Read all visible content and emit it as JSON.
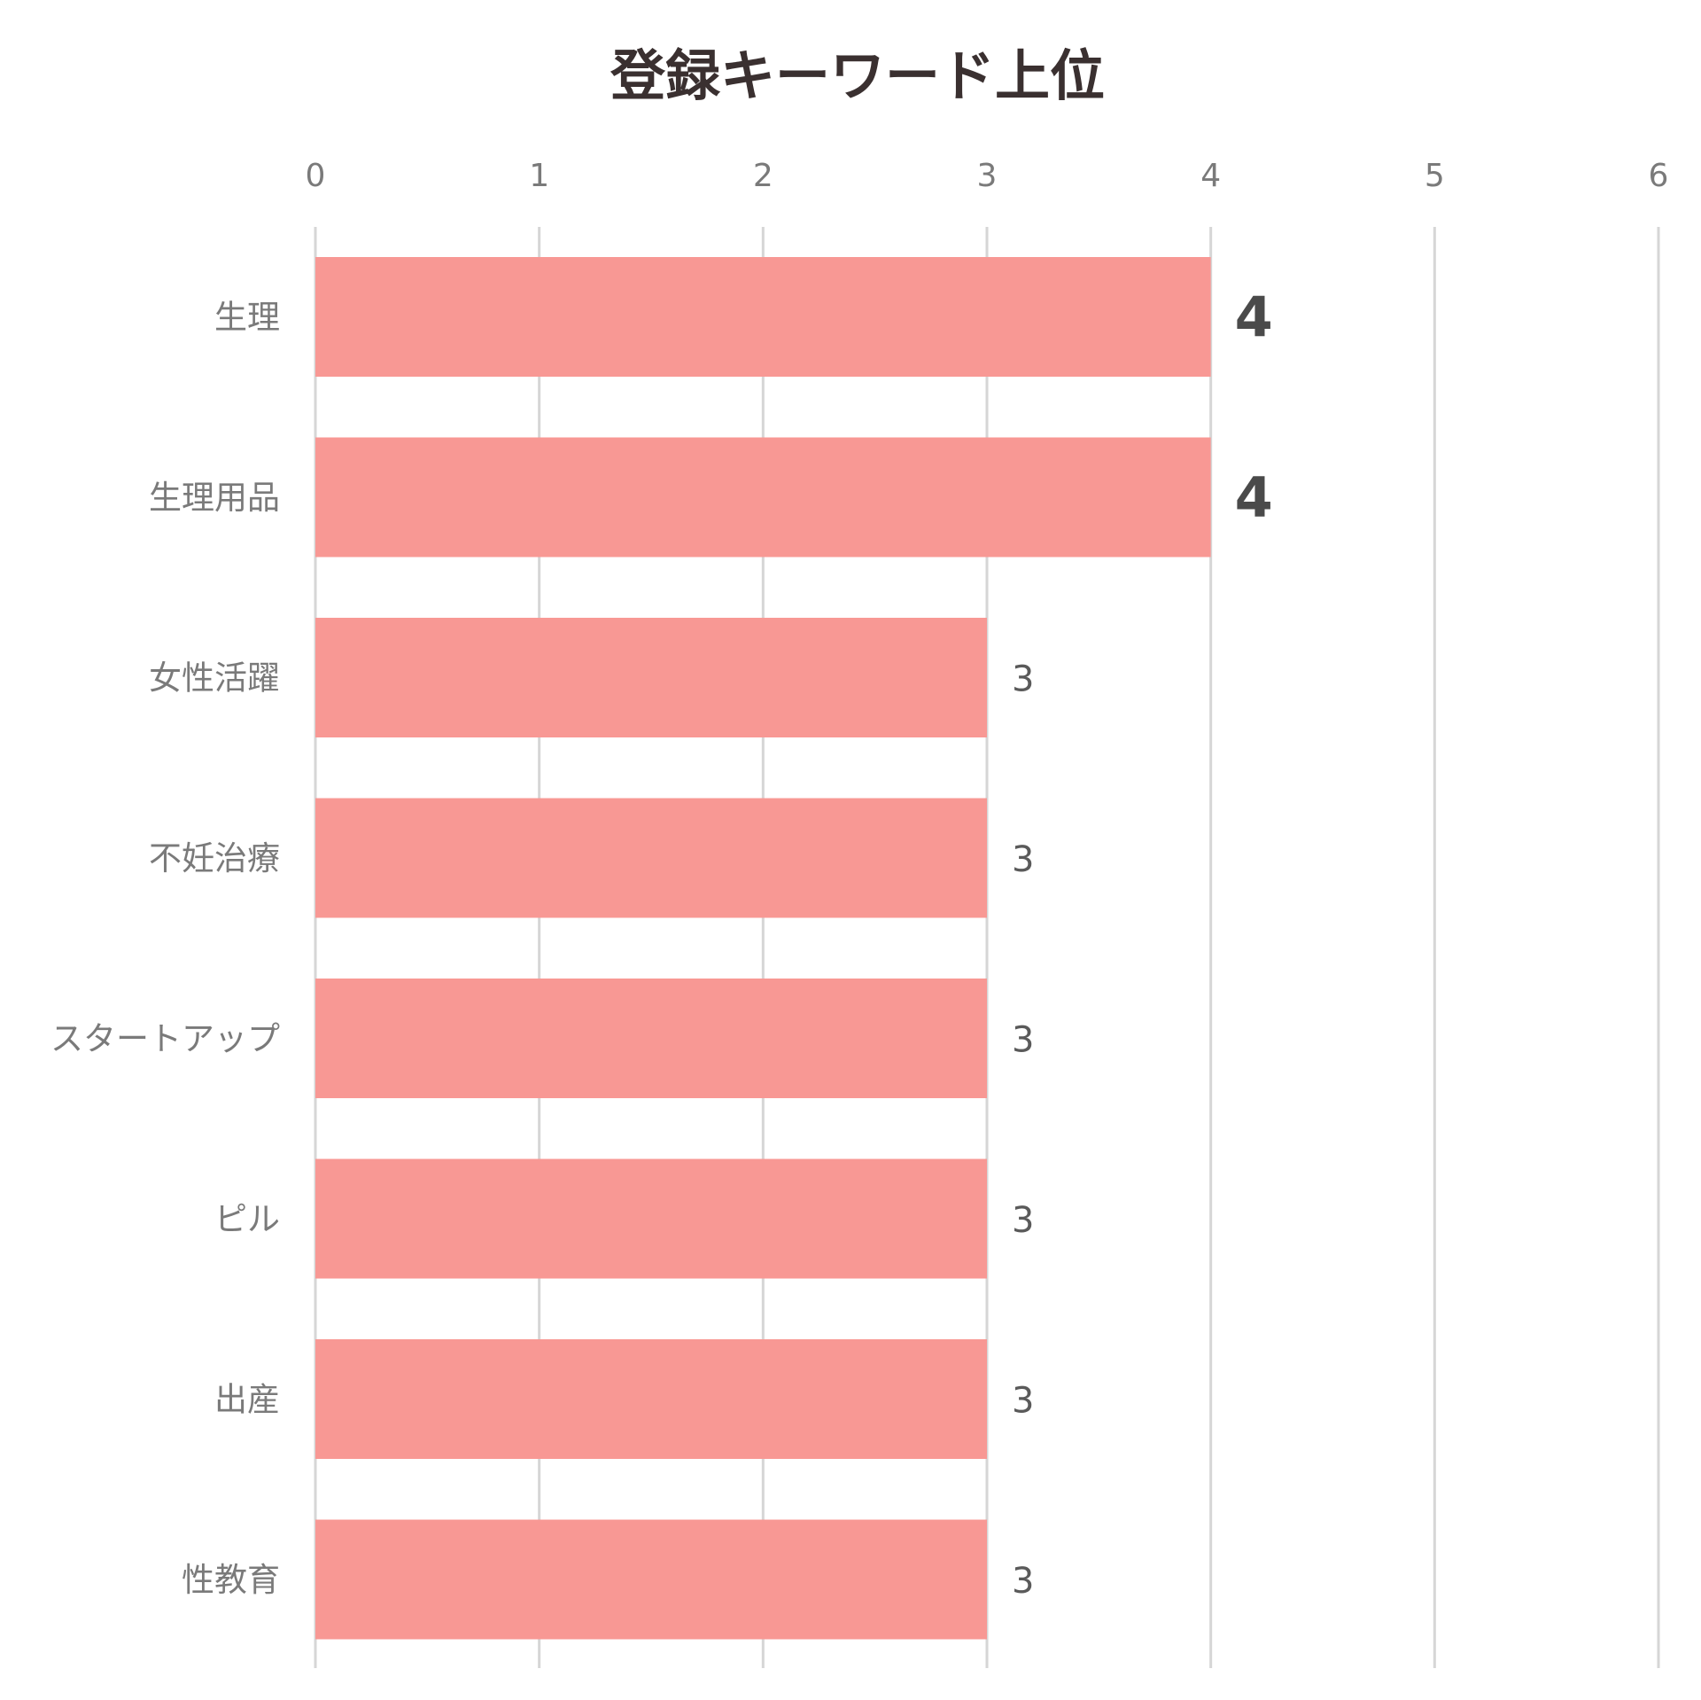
{
  "chart_data": {
    "type": "bar",
    "orientation": "horizontal",
    "title": "登録キーワード上位",
    "categories": [
      "生理",
      "生理用品",
      "女性活躍",
      "不妊治療",
      "スタートアップ",
      "ピル",
      "出産",
      "性教育"
    ],
    "values": [
      4,
      4,
      3,
      3,
      3,
      3,
      3,
      3
    ],
    "value_labels": [
      "4",
      "4",
      "3",
      "3",
      "3",
      "3",
      "3",
      "3"
    ],
    "emphasized_labels": [
      true,
      true,
      false,
      false,
      false,
      false,
      false,
      false
    ],
    "xlim": [
      0,
      6
    ],
    "x_ticks": [
      0,
      1,
      2,
      3,
      4,
      5,
      6
    ],
    "x_tick_labels": [
      "0",
      "1",
      "2",
      "3",
      "4",
      "5",
      "6"
    ],
    "x_axis_position": "top",
    "grid": true,
    "legend": "none",
    "colors": {
      "bar": "#f89894",
      "grid": "#d6d6d6",
      "title": "#3a3030",
      "axis_text": "#7a7a7a",
      "value_text": "#5a5a5a"
    }
  }
}
